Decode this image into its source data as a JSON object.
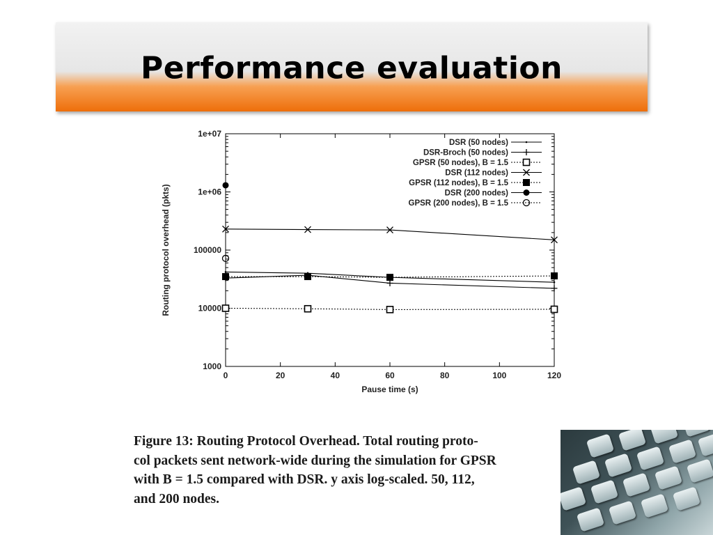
{
  "slide": {
    "title": "Performance evaluation"
  },
  "caption": {
    "lines": [
      "Figure 13: Routing Protocol Overhead. Total routing proto-",
      "col packets sent network-wide during the simulation for GPSR",
      "with B = 1.5 compared with DSR. y axis log-scaled. 50, 112,",
      "and 200 nodes."
    ]
  },
  "photo": {
    "icon": "keyboard-photo"
  },
  "chart_data": {
    "type": "line",
    "title": "",
    "xlabel": "Pause time (s)",
    "ylabel": "Routing protocol overhead (pkts)",
    "xlim": [
      0,
      120
    ],
    "ylim": [
      1000,
      10000000
    ],
    "y_scale": "log",
    "x_ticks": [
      0,
      20,
      40,
      60,
      80,
      100,
      120
    ],
    "y_ticks": [
      {
        "value": 1000,
        "label": "1000"
      },
      {
        "value": 10000,
        "label": "10000"
      },
      {
        "value": 100000,
        "label": "100000"
      },
      {
        "value": 1000000,
        "label": "1e+06"
      },
      {
        "value": 10000000,
        "label": "1e+07"
      }
    ],
    "grid": false,
    "legend_position": "top-right",
    "series": [
      {
        "name": "DSR (50 nodes)",
        "style": "solid",
        "marker": "dot",
        "x": [
          0,
          30,
          60,
          120
        ],
        "y": [
          42000,
          40000,
          34000,
          28000
        ]
      },
      {
        "name": "DSR-Broch (50 nodes)",
        "style": "solid",
        "marker": "plus",
        "x": [
          0,
          30,
          60,
          120
        ],
        "y": [
          33000,
          37000,
          27000,
          22000
        ]
      },
      {
        "name": "GPSR (50 nodes), B = 1.5",
        "style": "dotted",
        "marker": "open-square",
        "x": [
          0,
          30,
          60,
          120
        ],
        "y": [
          10000,
          9800,
          9500,
          9600
        ]
      },
      {
        "name": "DSR (112 nodes)",
        "style": "solid",
        "marker": "cross",
        "x": [
          0,
          30,
          60,
          120
        ],
        "y": [
          230000,
          225000,
          222000,
          150000
        ]
      },
      {
        "name": "GPSR (112 nodes), B = 1.5",
        "style": "dotted",
        "marker": "filled-square",
        "x": [
          0,
          30,
          60,
          120
        ],
        "y": [
          35000,
          35000,
          34000,
          36000
        ]
      },
      {
        "name": "DSR (200 nodes)",
        "style": "solid",
        "marker": "filled-circle",
        "x": [
          0
        ],
        "y": [
          1300000
        ]
      },
      {
        "name": "GPSR (200 nodes), B = 1.5",
        "style": "dotted",
        "marker": "open-circle",
        "x": [
          0
        ],
        "y": [
          72000
        ]
      }
    ]
  }
}
